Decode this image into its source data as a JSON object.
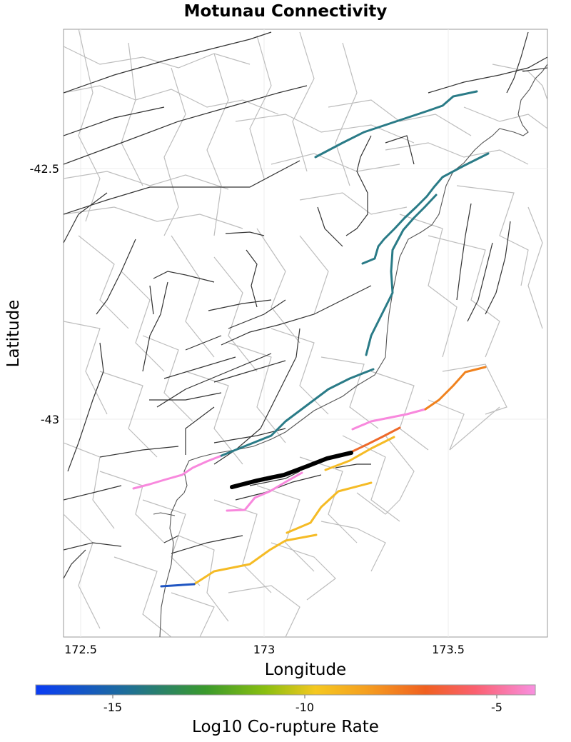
{
  "map": {
    "title": "Motunau Connectivity",
    "xlabel": "Longitude",
    "ylabel": "Latitude",
    "x_ticks": [
      "172.5",
      "173",
      "173.5"
    ],
    "y_ticks": [
      "-42.5",
      "-43"
    ],
    "colorbar": {
      "title": "Log10 Co-rupture Rate",
      "ticks": [
        "-15",
        "-10",
        "-5"
      ],
      "colors": [
        "#0a3cf5",
        "#1e6e9a",
        "#3a9a2c",
        "#8abf10",
        "#f5c820",
        "#f5a020",
        "#f06020",
        "#fa6070",
        "#f890e0"
      ]
    },
    "legend_colors": {
      "target_fault": "#000000",
      "teal": "#2a7b87",
      "pink": "#f888dd",
      "orange": "#f0821e",
      "dark_orange": "#ee6a2a",
      "yellow": "#f5bb25",
      "blue": "#1f55c2",
      "coastline": "#555555",
      "section_outline": "#bdbdbd",
      "trace": "#333333"
    }
  }
}
